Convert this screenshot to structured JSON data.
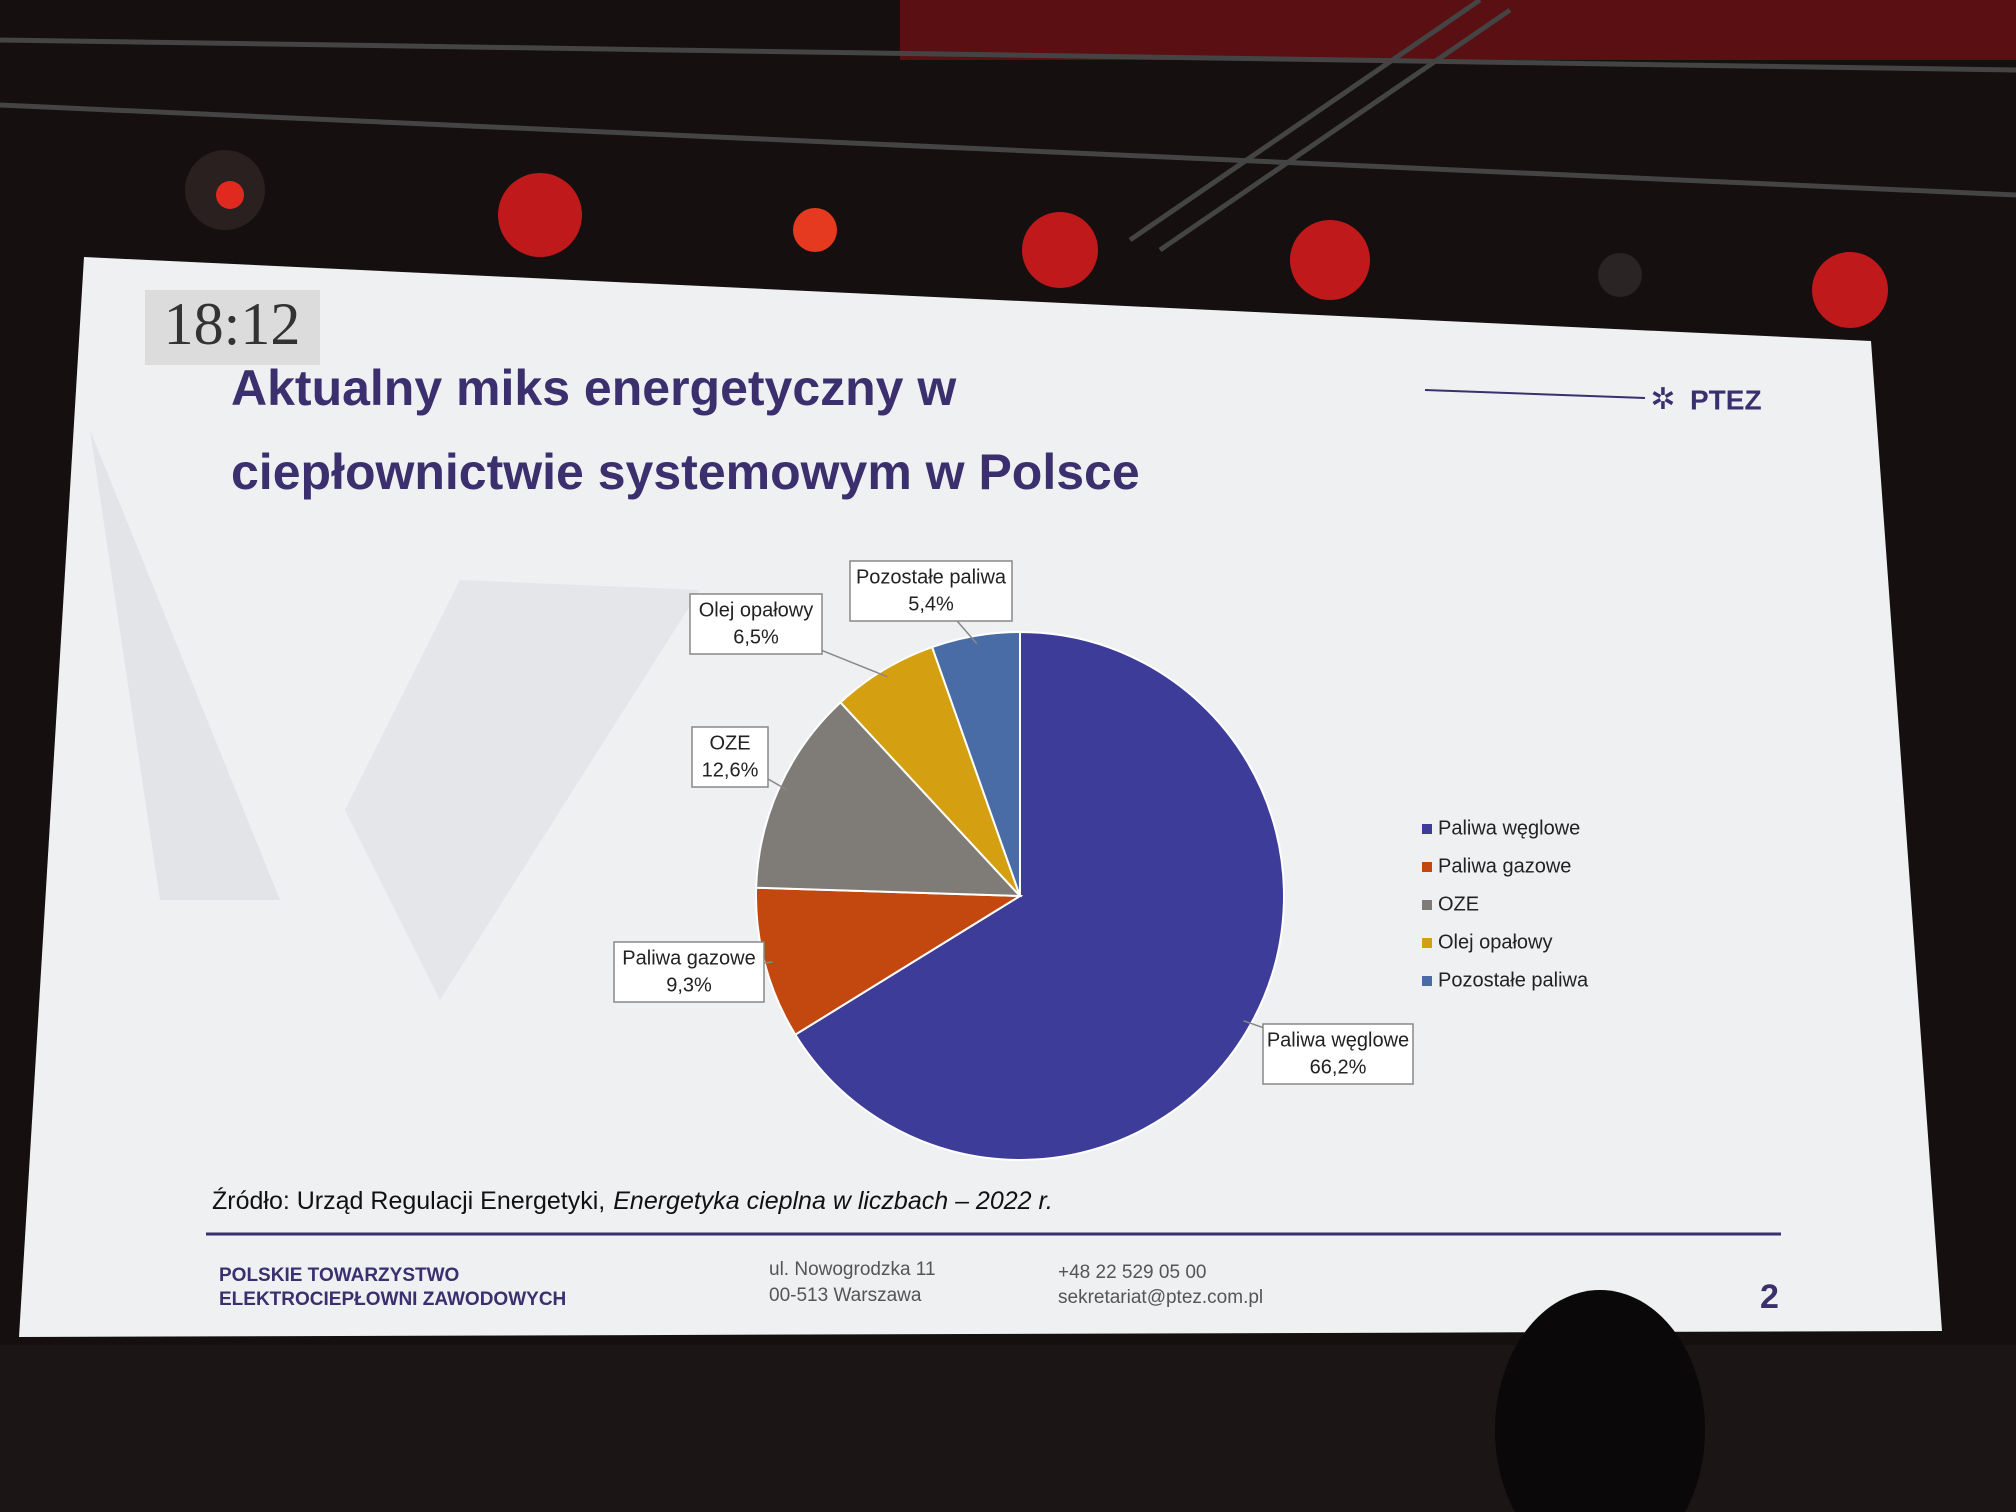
{
  "slide": {
    "clock": "18:12",
    "logo": "PTEZ",
    "source": [
      "Źródło: Urząd Regulacji Energetyki,",
      "Energetyka cieplna w liczbach – 2022 r."
    ],
    "footer": {
      "org": [
        "POLSKIE TOWARZYSTWO",
        "ELEKTROCIEPŁOWNI ZAWODOWYCH"
      ],
      "address": [
        "ul. Nowogrodzka 11",
        "00-513 Warszawa"
      ],
      "contact": [
        "+48 22 529 05 00",
        "sekretariat@ptez.com.pl"
      ],
      "page": "2"
    }
  },
  "chart_data": {
    "type": "pie",
    "title": [
      "Aktualny miks energetyczny w",
      "ciepłownictwie systemowym w Polsce"
    ],
    "categories": [
      "Paliwa węglowe",
      "Paliwa gazowe",
      "OZE",
      "Olej opałowy",
      "Pozostałe paliwa"
    ],
    "values": [
      66.2,
      9.3,
      12.6,
      6.5,
      5.4
    ],
    "value_labels": [
      "66,2%",
      "9,3%",
      "12,6%",
      "6,5%",
      "5,4%"
    ],
    "colors": [
      "#3d3d99",
      "#c2480f",
      "#7f7c78",
      "#d4a012",
      "#4a6ca6"
    ],
    "legend": "right"
  }
}
